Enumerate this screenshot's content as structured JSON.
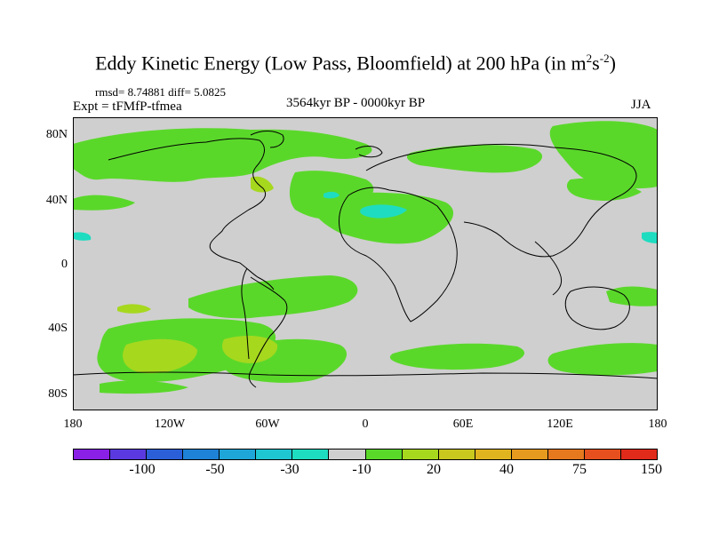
{
  "title": "Eddy Kinetic Energy (Low Pass, Bloomfield) at 200 hPa (in m",
  "title_units": {
    "sup1": "2",
    "mid": "s",
    "sup2": "-2",
    "end": ")"
  },
  "stats": "rmsd= 8.74881 diff= 5.0825",
  "expt": "Expt = tFMfP-tfmea",
  "period": "3564kyr BP - 0000kyr BP",
  "season": "JJA",
  "y_ticks": [
    "80N",
    "40N",
    "0",
    "40S",
    "80S"
  ],
  "x_ticks": [
    "180",
    "120W",
    "60W",
    "0",
    "60E",
    "120E",
    "180"
  ],
  "colorbar": {
    "colors": [
      "#8a1fe6",
      "#5a3ae0",
      "#2a5fd8",
      "#1e82d6",
      "#1ea6d8",
      "#1ec6d2",
      "#1edcc0",
      "#cfcfcf",
      "#5ad82a",
      "#a6d81e",
      "#c8c81e",
      "#e0b41e",
      "#e69a1e",
      "#e6781e",
      "#e6501e",
      "#e02a1a"
    ],
    "labels": [
      "-100",
      "-50",
      "-30",
      "-10",
      "20",
      "40",
      "75",
      "150"
    ]
  },
  "map_colors": {
    "ocean_bg": "#cfcfcf",
    "positive_low": "#5ad82a",
    "positive_mid": "#a6d81e",
    "negative_low": "#1edcc0"
  }
}
